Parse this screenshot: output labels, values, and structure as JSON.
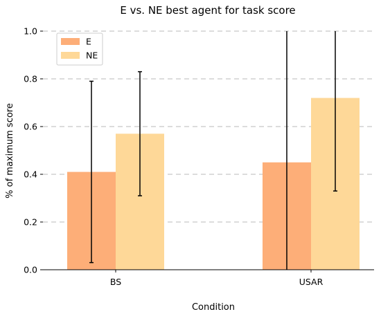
{
  "chart_data": {
    "type": "bar",
    "title": "E vs. NE best agent for task score",
    "xlabel": "Condition",
    "ylabel": "% of maximum score",
    "categories": [
      "BS",
      "USAR"
    ],
    "series": [
      {
        "name": "E",
        "color": "#fdae78",
        "values": [
          0.41,
          0.45
        ],
        "error_low": [
          0.03,
          0.0
        ],
        "error_high": [
          0.79,
          1.0
        ]
      },
      {
        "name": "NE",
        "color": "#fed898",
        "values": [
          0.57,
          0.72
        ],
        "error_low": [
          0.31,
          0.33
        ],
        "error_high": [
          0.83,
          1.0
        ]
      }
    ],
    "ylim": [
      0.0,
      1.0
    ],
    "yticks": [
      0.0,
      0.2,
      0.4,
      0.6,
      0.8,
      1.0
    ],
    "ytick_labels": [
      "0.0",
      "0.2",
      "0.4",
      "0.6",
      "0.8",
      "1.0"
    ],
    "grid": "horizontal-dashed",
    "legend_position": "top-left"
  }
}
